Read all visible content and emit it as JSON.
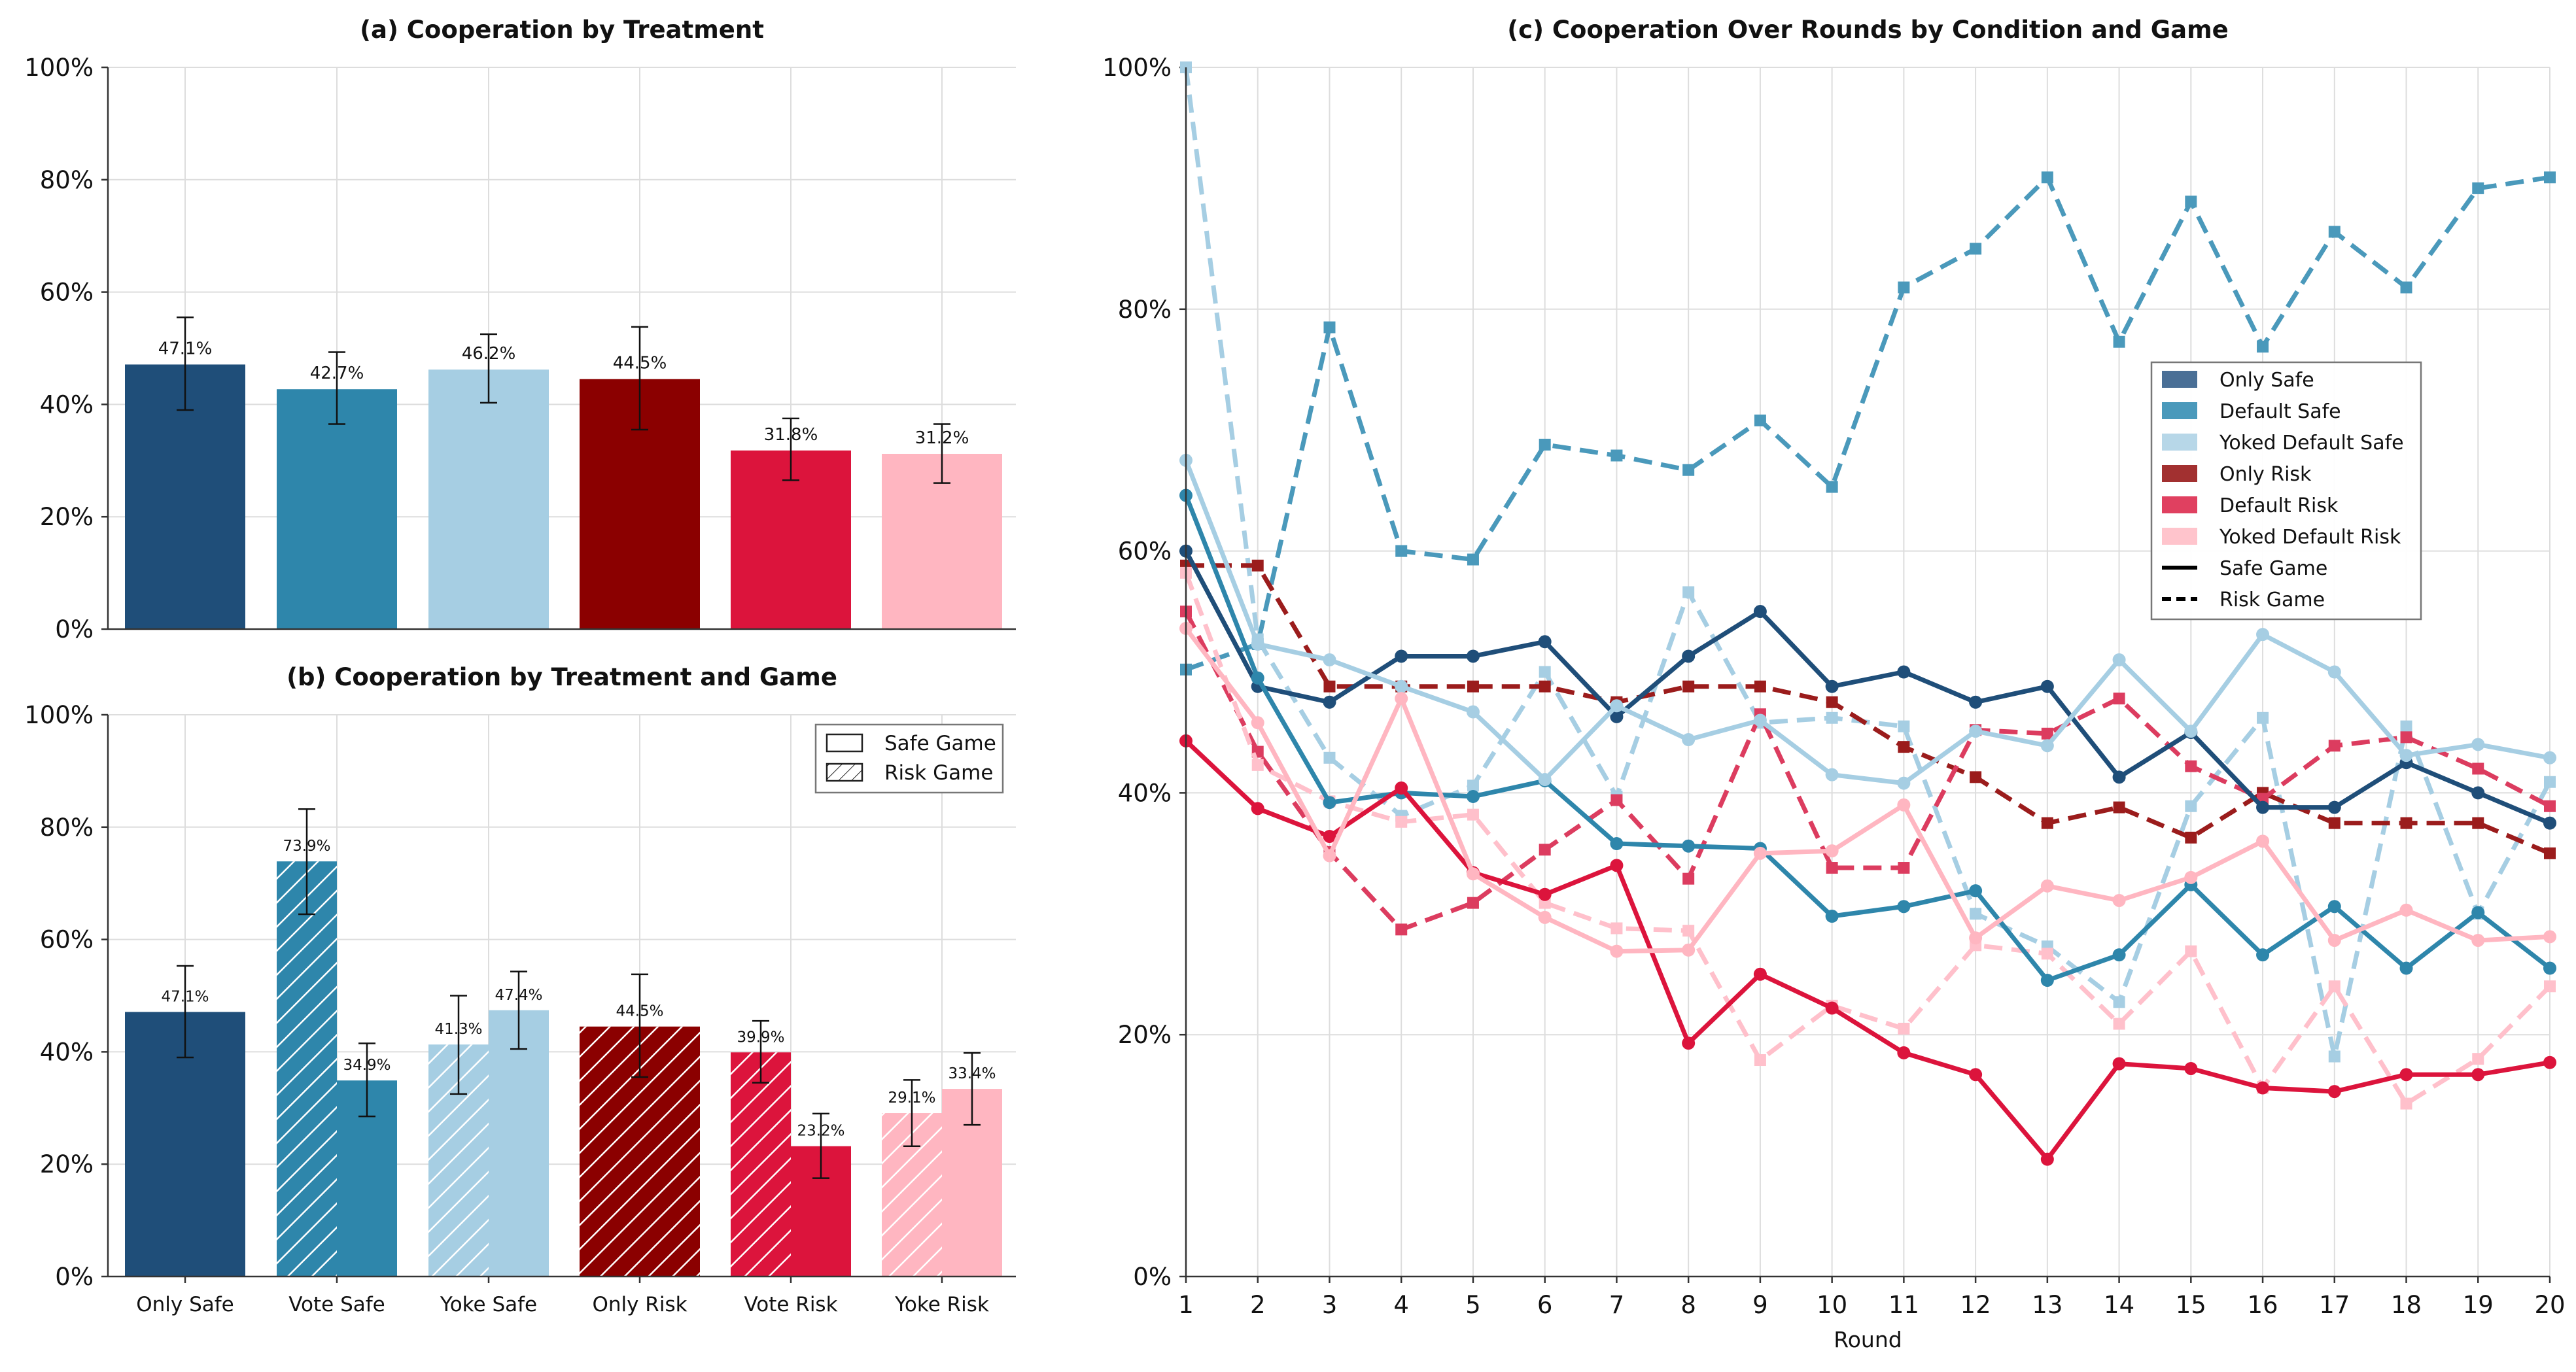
{
  "chart_data": [
    {
      "id": "a",
      "type": "bar",
      "title": "(a) Cooperation by Treatment",
      "categories": [
        "Only Safe",
        "Vote Safe",
        "Yoke Safe",
        "Only Risk",
        "Vote Risk",
        "Yoke Risk"
      ],
      "values": [
        47.1,
        42.7,
        46.2,
        44.5,
        31.8,
        31.2
      ],
      "labels": [
        "47.1%",
        "42.7%",
        "46.2%",
        "44.5%",
        "31.8%",
        "31.2%"
      ],
      "error_low": [
        39.0,
        36.5,
        40.3,
        35.5,
        26.5,
        26.0
      ],
      "error_high": [
        55.5,
        49.3,
        52.5,
        53.8,
        37.5,
        36.5
      ],
      "colors": [
        "#1f4e79",
        "#2e86ab",
        "#a6cee3",
        "#8b0000",
        "#dc143c",
        "#ffb6c1"
      ],
      "yticks": [
        "0%",
        "20%",
        "40%",
        "60%",
        "80%",
        "100%"
      ],
      "ylim": [
        0,
        100
      ],
      "grid": true
    },
    {
      "id": "b",
      "type": "bar",
      "title": "(b) Cooperation by Treatment and Game",
      "categories": [
        "Only Safe",
        "Vote Safe",
        "Yoke Safe",
        "Only Risk",
        "Vote Risk",
        "Yoke Risk"
      ],
      "bars": [
        {
          "category": 0,
          "game": "safe",
          "single": true,
          "value": 47.1,
          "label": "47.1%",
          "err": [
            39.0,
            55.3
          ],
          "color": "#1f4e79"
        },
        {
          "category": 1,
          "game": "risk",
          "value": 73.9,
          "label": "73.9%",
          "err": [
            64.5,
            83.2
          ],
          "color": "#2e86ab"
        },
        {
          "category": 1,
          "game": "safe",
          "value": 34.9,
          "label": "34.9%",
          "err": [
            28.5,
            41.5
          ],
          "color": "#2e86ab"
        },
        {
          "category": 2,
          "game": "risk",
          "value": 41.3,
          "label": "41.3%",
          "err": [
            32.5,
            50.0
          ],
          "color": "#a6cee3"
        },
        {
          "category": 2,
          "game": "safe",
          "value": 47.4,
          "label": "47.4%",
          "err": [
            40.5,
            54.3
          ],
          "color": "#a6cee3"
        },
        {
          "category": 3,
          "game": "risk",
          "single": true,
          "value": 44.5,
          "label": "44.5%",
          "err": [
            35.5,
            53.8
          ],
          "color": "#8b0000"
        },
        {
          "category": 4,
          "game": "risk",
          "value": 39.9,
          "label": "39.9%",
          "err": [
            34.5,
            45.5
          ],
          "color": "#dc143c"
        },
        {
          "category": 4,
          "game": "safe",
          "value": 23.2,
          "label": "23.2%",
          "err": [
            17.5,
            29.0
          ],
          "color": "#dc143c"
        },
        {
          "category": 5,
          "game": "risk",
          "value": 29.1,
          "label": "29.1%",
          "err": [
            23.2,
            35.0
          ],
          "color": "#ffb6c1"
        },
        {
          "category": 5,
          "game": "safe",
          "value": 33.4,
          "label": "33.4%",
          "err": [
            27.0,
            39.8
          ],
          "color": "#ffb6c1"
        }
      ],
      "legend": [
        "Safe Game",
        "Risk Game"
      ],
      "legend_position": "top-right",
      "yticks": [
        "0%",
        "20%",
        "40%",
        "60%",
        "80%",
        "100%"
      ],
      "ylim": [
        0,
        100
      ],
      "grid": true
    },
    {
      "id": "c",
      "type": "line",
      "title": "(c) Cooperation Over Rounds by Condition and Game",
      "xlabel": "Round",
      "x": [
        1,
        2,
        3,
        4,
        5,
        6,
        7,
        8,
        9,
        10,
        11,
        12,
        13,
        14,
        15,
        16,
        17,
        18,
        19,
        20
      ],
      "xlim": [
        1,
        20
      ],
      "ylim": [
        0,
        100
      ],
      "yticks": [
        "0%",
        "20%",
        "40%",
        "60%",
        "80%",
        "100%"
      ],
      "grid": true,
      "legend_position": "upper-right",
      "legend": [
        {
          "label": "Only Safe",
          "color": "#4a6f96",
          "kind": "patch"
        },
        {
          "label": "Default Safe",
          "color": "#4a99bb",
          "kind": "patch"
        },
        {
          "label": "Yoked Default Safe",
          "color": "#b7d7e8",
          "kind": "patch"
        },
        {
          "label": "Only Risk",
          "color": "#a23030",
          "kind": "patch"
        },
        {
          "label": "Default Risk",
          "color": "#e04060",
          "kind": "patch"
        },
        {
          "label": "Yoked Default Risk",
          "color": "#ffc4cc",
          "kind": "patch"
        },
        {
          "label": "Safe Game",
          "color": "#000000",
          "kind": "line-solid"
        },
        {
          "label": "Risk Game",
          "color": "#000000",
          "kind": "line-dashed"
        }
      ],
      "series": [
        {
          "condition": "Default Safe",
          "game": "risk",
          "color": "#4a99bb",
          "marker": "square",
          "values": [
            50.2,
            52.3,
            78.5,
            60.0,
            59.3,
            68.8,
            67.9,
            66.7,
            70.8,
            65.3,
            81.8,
            85.0,
            90.9,
            77.3,
            88.9,
            76.9,
            86.4,
            81.8,
            90.0,
            90.9
          ]
        },
        {
          "condition": "Yoked Default Safe",
          "game": "risk",
          "color": "#a6cee3",
          "marker": "square",
          "values": [
            100,
            52.7,
            42.9,
            38.1,
            40.6,
            50.0,
            39.7,
            56.6,
            45.8,
            46.2,
            45.5,
            30.0,
            27.3,
            22.7,
            38.9,
            46.2,
            18.2,
            45.5,
            30.0,
            40.9
          ]
        },
        {
          "condition": "Only Risk",
          "game": "risk",
          "color": "#9b1c1c",
          "marker": "square",
          "values": [
            58.8,
            58.8,
            48.8,
            48.8,
            48.8,
            48.8,
            47.5,
            48.8,
            48.8,
            47.5,
            43.8,
            41.3,
            37.5,
            38.8,
            36.3,
            40.0,
            37.5,
            37.5,
            37.5,
            35.0
          ]
        },
        {
          "condition": "Default Risk",
          "game": "risk",
          "color": "#dc3c5f",
          "marker": "square",
          "values": [
            55.0,
            43.4,
            35.1,
            28.7,
            30.9,
            35.3,
            39.4,
            32.9,
            46.5,
            33.8,
            33.8,
            45.2,
            44.9,
            47.8,
            42.2,
            39.5,
            43.9,
            44.6,
            42.0,
            38.9
          ]
        },
        {
          "condition": "Yoked Default Risk",
          "game": "risk",
          "color": "#ffc0cb",
          "marker": "square",
          "values": [
            58.2,
            42.3,
            39.3,
            37.6,
            38.2,
            30.9,
            28.8,
            28.6,
            17.9,
            22.4,
            20.5,
            27.4,
            26.7,
            20.9,
            26.9,
            15.6,
            24.0,
            14.3,
            18.0,
            24.0
          ]
        },
        {
          "condition": "Only Safe",
          "game": "safe",
          "color": "#1f4e79",
          "marker": "circle",
          "values": [
            60.0,
            48.8,
            47.5,
            51.3,
            51.3,
            52.5,
            46.3,
            51.3,
            55.0,
            48.8,
            50.0,
            47.5,
            48.8,
            41.3,
            45.0,
            38.8,
            38.8,
            42.5,
            40.0,
            37.5
          ]
        },
        {
          "condition": "Default Safe",
          "game": "safe",
          "color": "#2e86ab",
          "marker": "circle",
          "values": [
            64.6,
            49.5,
            39.2,
            40.0,
            39.7,
            41.0,
            35.8,
            35.6,
            35.4,
            29.8,
            30.6,
            31.9,
            24.5,
            26.6,
            32.4,
            26.6,
            30.6,
            25.5,
            30.1,
            25.5
          ]
        },
        {
          "condition": "Yoked Default Safe",
          "game": "safe",
          "color": "#a6cee3",
          "marker": "circle",
          "values": [
            67.5,
            52.3,
            51.0,
            48.8,
            46.7,
            41.1,
            47.2,
            44.4,
            46.0,
            41.5,
            40.8,
            45.1,
            43.9,
            51.0,
            45.1,
            53.1,
            50.0,
            43.1,
            44.0,
            42.9
          ]
        },
        {
          "condition": "Default Risk",
          "game": "safe",
          "color": "#dc143c",
          "marker": "circle",
          "values": [
            44.3,
            38.7,
            36.4,
            40.4,
            33.4,
            31.6,
            34.0,
            19.3,
            25.0,
            22.2,
            18.5,
            16.7,
            9.7,
            17.6,
            17.2,
            15.6,
            15.3,
            16.7,
            16.7,
            17.7
          ]
        },
        {
          "condition": "Yoked Default Risk",
          "game": "safe",
          "color": "#ffb6c1",
          "marker": "circle",
          "values": [
            53.6,
            45.8,
            34.8,
            47.8,
            33.3,
            29.7,
            26.9,
            27.0,
            35.0,
            35.2,
            39.0,
            28.0,
            32.3,
            31.1,
            33.0,
            36.0,
            27.8,
            30.3,
            27.8,
            28.1
          ]
        }
      ]
    }
  ]
}
